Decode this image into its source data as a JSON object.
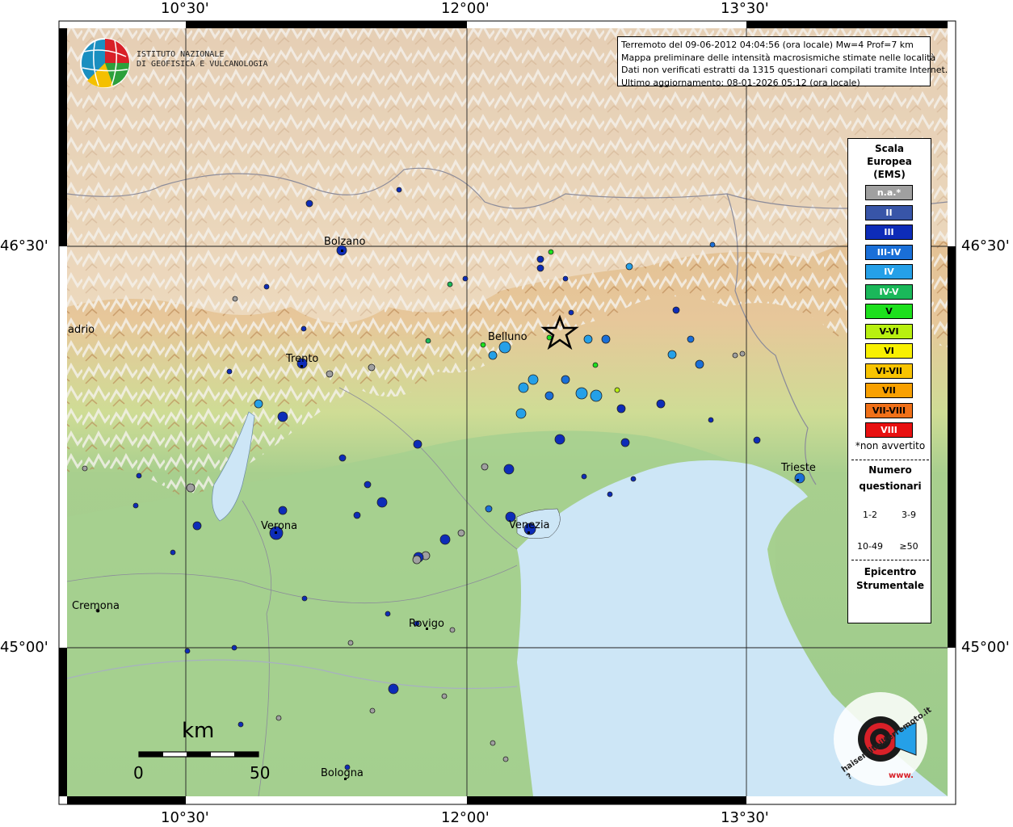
{
  "info_box": {
    "line1": "Terremoto del 09-06-2012 04:04:56 (ora locale) Mw=4 Prof=7 km",
    "line2": "Mappa preliminare delle intensità macrosismiche stimate nelle località",
    "line3": "Dati non verificati estratti da 1315 questionari compilati tramite Internet.",
    "line4": "Ultimo aggiornamento: 08-01-2026 05:12 (ora locale)"
  },
  "institute": {
    "line1": "ISTITUTO NAZIONALE",
    "line2": "DI GEOFISICA E VULCANOLOGIA"
  },
  "coordinates": {
    "lon_10_30": "10°30'",
    "lon_12_00": "12°00'",
    "lon_13_30": "13°30'",
    "lat_46_30": "46°30'",
    "lat_45_00": "45°00'"
  },
  "cities": {
    "bolzano": "Bolzano",
    "trento": "Trento",
    "belluno": "Belluno",
    "verona": "Verona",
    "venezia": "Venezia",
    "trieste": "Trieste",
    "cremona": "Cremona",
    "rovigo": "Rovigo",
    "bologna": "Bologna",
    "madrio": "adrio"
  },
  "legend": {
    "title1": "Scala",
    "title2": "Europea",
    "title3": "(EMS)",
    "classes": [
      {
        "label": "n.a.*",
        "color": "#a0a0a0"
      },
      {
        "label": "II",
        "color": "#3855a8"
      },
      {
        "label": "III",
        "color": "#0d2cb8"
      },
      {
        "label": "III-IV",
        "color": "#1a6fd8"
      },
      {
        "label": "IV",
        "color": "#25a0e8"
      },
      {
        "label": "IV-V",
        "color": "#1ab85a"
      },
      {
        "label": "V",
        "color": "#1de01d"
      },
      {
        "label": "V-VI",
        "color": "#b8f010"
      },
      {
        "label": "VI",
        "color": "#f8f000"
      },
      {
        "label": "VI-VII",
        "color": "#f8c400"
      },
      {
        "label": "VII",
        "color": "#f8a000"
      },
      {
        "label": "VII-VIII",
        "color": "#f07018"
      },
      {
        "label": "VIII",
        "color": "#e81010"
      }
    ],
    "not_felt": "*non avvertito",
    "count_title1": "Numero",
    "count_title2": "questionari",
    "count_1_2": "1-2",
    "count_3_9": "3-9",
    "count_10_49": "10-49",
    "count_50": "≥50",
    "epicenter1": "Epicentro",
    "epicenter2": "Strumentale"
  },
  "scale_bar": {
    "unit": "km",
    "start": "0",
    "end": "50"
  },
  "badge": {
    "text": "haisentitoilterremoto.it ?",
    "url_text": "www."
  }
}
